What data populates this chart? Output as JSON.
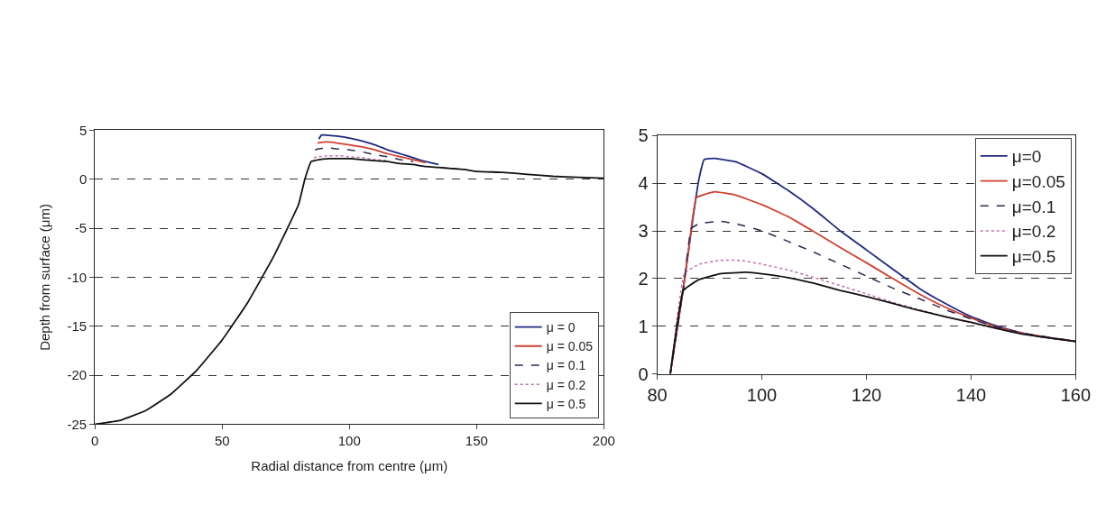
{
  "chart_data": [
    {
      "type": "line",
      "xlabel": "Radial distance from centre (μm)",
      "ylabel": "Depth from surface (μm)",
      "xlim": [
        0,
        200
      ],
      "xticks": [
        0,
        50,
        100,
        150,
        200
      ],
      "ylim": [
        -25,
        5
      ],
      "yticks": [
        -25,
        -20,
        -15,
        -10,
        -5,
        0,
        5
      ],
      "grid": "y",
      "legend": "bottom right",
      "marker": "none",
      "series": [
        {
          "name": "μ = 0",
          "color": "#1f2a80",
          "line_style": "solid",
          "x": [
            88,
            89,
            91,
            95,
            100,
            105,
            110,
            115,
            120,
            125,
            130,
            135
          ],
          "values": [
            4.1,
            4.5,
            4.5,
            4.4,
            4.2,
            3.9,
            3.5,
            3.0,
            2.6,
            2.2,
            1.8,
            1.5
          ]
        },
        {
          "name": "μ = 0.05",
          "color": "#d04030",
          "line_style": "solid",
          "x": [
            87.5,
            91,
            95,
            100,
            105,
            110,
            115,
            120,
            125,
            130
          ],
          "values": [
            3.7,
            3.8,
            3.7,
            3.5,
            3.3,
            3.0,
            2.6,
            2.3,
            2.0,
            1.7
          ]
        },
        {
          "name": "μ = 0.1",
          "color": "#2a2a50",
          "line_style": "dashed",
          "x": [
            86.5,
            88,
            92,
            95,
            100,
            105,
            110,
            115,
            120,
            125
          ],
          "values": [
            3.0,
            3.1,
            3.2,
            3.1,
            3.0,
            2.8,
            2.5,
            2.3,
            2.0,
            1.8
          ]
        },
        {
          "name": "μ = 0.2",
          "color": "#c070b0",
          "line_style": "dotted",
          "x": [
            86,
            88,
            92,
            96,
            100,
            105,
            110,
            115
          ],
          "values": [
            2.2,
            2.3,
            2.4,
            2.4,
            2.3,
            2.2,
            2.0,
            1.9
          ]
        },
        {
          "name": "μ = 0.5",
          "color": "#111111",
          "line_style": "solid",
          "x": [
            0,
            10,
            20,
            30,
            40,
            50,
            60,
            70,
            80,
            82.5,
            85,
            88,
            92,
            97,
            100,
            105,
            110,
            115,
            120,
            125,
            130,
            135,
            140,
            145,
            150,
            160,
            170,
            180,
            190,
            200
          ],
          "values": [
            -25,
            -24.6,
            -23.6,
            -21.9,
            -19.5,
            -16.4,
            -12.6,
            -8.0,
            -2.6,
            0,
            1.8,
            2.0,
            2.1,
            2.1,
            2.1,
            2.0,
            1.9,
            1.8,
            1.6,
            1.5,
            1.3,
            1.2,
            1.1,
            1.0,
            0.8,
            0.7,
            0.5,
            0.3,
            0.2,
            0.1
          ]
        }
      ]
    },
    {
      "type": "line",
      "xlim": [
        80,
        160
      ],
      "xticks": [
        80,
        100,
        120,
        140,
        160
      ],
      "ylim": [
        0,
        5
      ],
      "yticks": [
        0,
        1,
        2,
        3,
        4,
        5
      ],
      "grid": "y",
      "legend": "top right",
      "marker": "none",
      "series": [
        {
          "name": "μ=0",
          "color": "#1f2a80",
          "line_style": "solid",
          "x": [
            82.5,
            85,
            86,
            87,
            88,
            89,
            91,
            95,
            100,
            105,
            110,
            115,
            120,
            125,
            130,
            135,
            140,
            145,
            150,
            155,
            160
          ],
          "values": [
            0,
            1.8,
            2.6,
            3.4,
            4.1,
            4.5,
            4.52,
            4.45,
            4.2,
            3.85,
            3.45,
            3.0,
            2.6,
            2.2,
            1.8,
            1.48,
            1.2,
            1.0,
            0.85,
            0.75,
            0.68
          ]
        },
        {
          "name": "μ=0.05",
          "color": "#d04030",
          "line_style": "solid",
          "x": [
            82.5,
            85,
            86,
            87.5,
            91,
            95,
            100,
            105,
            110,
            115,
            120,
            125,
            130,
            135,
            140,
            145,
            150,
            160
          ],
          "values": [
            0,
            1.8,
            2.6,
            3.7,
            3.82,
            3.75,
            3.55,
            3.3,
            2.98,
            2.65,
            2.33,
            2.0,
            1.68,
            1.4,
            1.17,
            0.98,
            0.85,
            0.68
          ]
        },
        {
          "name": "μ=0.1",
          "color": "#2a2a50",
          "line_style": "dashed",
          "x": [
            82.5,
            85,
            86.5,
            88,
            92,
            95,
            100,
            105,
            110,
            115,
            120,
            125,
            130,
            135,
            140,
            145,
            150,
            160
          ],
          "values": [
            0,
            1.8,
            3.05,
            3.15,
            3.2,
            3.15,
            3.0,
            2.78,
            2.55,
            2.3,
            2.05,
            1.8,
            1.58,
            1.35,
            1.15,
            0.98,
            0.85,
            0.68
          ]
        },
        {
          "name": "μ=0.2",
          "color": "#c070b0",
          "line_style": "dotted",
          "x": [
            82.5,
            85.2,
            88,
            92,
            96,
            100,
            105,
            110,
            115,
            120,
            125,
            130,
            135,
            140,
            145,
            150,
            160
          ],
          "values": [
            0,
            2.1,
            2.3,
            2.38,
            2.38,
            2.3,
            2.18,
            2.02,
            1.85,
            1.68,
            1.5,
            1.35,
            1.2,
            1.07,
            0.95,
            0.83,
            0.68
          ]
        },
        {
          "name": "μ=0.5",
          "color": "#111111",
          "line_style": "solid",
          "x": [
            82.5,
            85,
            88,
            92,
            97,
            100,
            105,
            110,
            115,
            120,
            125,
            130,
            135,
            140,
            145,
            150,
            160
          ],
          "values": [
            0,
            1.75,
            1.98,
            2.1,
            2.13,
            2.1,
            2.02,
            1.9,
            1.75,
            1.62,
            1.48,
            1.33,
            1.2,
            1.08,
            0.95,
            0.83,
            0.68
          ]
        }
      ]
    }
  ]
}
